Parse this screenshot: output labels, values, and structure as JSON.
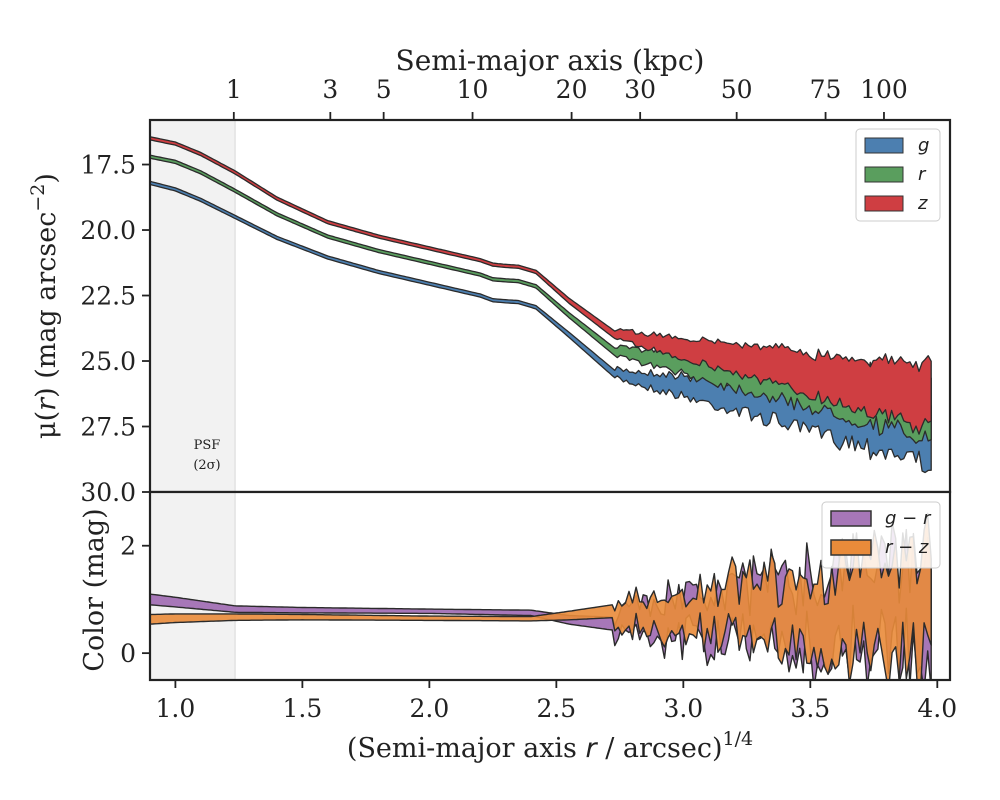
{
  "chart_data": [
    {
      "type": "area",
      "panel": "surface-brightness",
      "xlabel": "(Semi-major axis r / arcsec)^1/4",
      "xlabel_main": "(Semi-major axis ",
      "xlabel_var": "r",
      "xlabel_unit": " / arcsec)",
      "xlabel_exp": "1/4",
      "ylabel": "μ(r) (mag arcsec−2)",
      "ylabel_main": "μ(",
      "ylabel_var": "r",
      "ylabel_unit": ") (mag arcsec",
      "ylabel_exp": "−2",
      "ylabel_close": ")",
      "top_xlabel": "Semi-major axis (kpc)",
      "top_ticks": [
        "1",
        "3",
        "5",
        "10",
        "20",
        "30",
        "50",
        "75",
        "100"
      ],
      "top_tick_values": [
        1,
        3,
        5,
        10,
        20,
        30,
        50,
        75,
        100
      ],
      "xlim": [
        0.9,
        4.05
      ],
      "ylim": [
        30.0,
        15.8
      ],
      "y_inverted": true,
      "yticks": [
        "17.5",
        "20.0",
        "22.5",
        "25.0",
        "27.5",
        "30.0"
      ],
      "ytick_values": [
        17.5,
        20.0,
        22.5,
        25.0,
        27.5,
        30.0
      ],
      "psf_region": {
        "x_min": 0.9,
        "x_max": 1.235,
        "label_line1": "PSF",
        "label_line2": "(2σ)"
      },
      "legend": {
        "placement": "top-right",
        "entries": [
          "g",
          "r",
          "z"
        ]
      },
      "x_knots": [
        0.9,
        1.0,
        1.1,
        1.235,
        1.4,
        1.6,
        1.8,
        2.0,
        2.2,
        2.25,
        2.3,
        2.35,
        2.42,
        2.55,
        2.73
      ],
      "series": [
        {
          "name": "g",
          "color": "#4c7fb0",
          "values": [
            18.2,
            18.45,
            18.85,
            19.5,
            20.3,
            21.05,
            21.6,
            22.05,
            22.5,
            22.68,
            22.72,
            22.75,
            22.95,
            24.0,
            25.5
          ],
          "noisy_level_end": 27.7,
          "noise_amp": 0.45
        },
        {
          "name": "r",
          "color": "#5a9e5e",
          "values": [
            17.2,
            17.4,
            17.8,
            18.5,
            19.4,
            20.25,
            20.8,
            21.25,
            21.7,
            21.88,
            21.92,
            21.95,
            22.15,
            23.25,
            24.65
          ],
          "noisy_level_end": 26.8,
          "noise_amp": 0.35
        },
        {
          "name": "z",
          "color": "#cf3e42",
          "values": [
            16.5,
            16.7,
            17.1,
            17.8,
            18.8,
            19.7,
            20.25,
            20.7,
            21.15,
            21.32,
            21.37,
            21.4,
            21.6,
            22.7,
            24.0
          ],
          "noisy_level_end": 26.4,
          "noise_amp": 0.3
        }
      ]
    },
    {
      "type": "area",
      "panel": "color",
      "ylabel": "Color (mag)",
      "xlim": [
        0.9,
        4.05
      ],
      "ylim": [
        -0.5,
        3.0
      ],
      "yticks": [
        "0",
        "2"
      ],
      "ytick_values": [
        0,
        2
      ],
      "xticks": [
        "1.0",
        "1.5",
        "2.0",
        "2.5",
        "3.0",
        "3.5",
        "4.0"
      ],
      "xtick_values": [
        1.0,
        1.5,
        2.0,
        2.5,
        3.0,
        3.5,
        4.0
      ],
      "legend": {
        "placement": "top-right",
        "entries": [
          "g − r",
          "r − z"
        ]
      },
      "series": [
        {
          "name": "g − r",
          "color": "#a777b8",
          "x": [
            0.9,
            1.0,
            1.235,
            1.5,
            2.0,
            2.4,
            2.55,
            2.72
          ],
          "center": [
            1.0,
            0.95,
            0.82,
            0.8,
            0.78,
            0.75,
            0.62,
            0.55
          ],
          "halfwidth": [
            0.1,
            0.09,
            0.06,
            0.05,
            0.04,
            0.05,
            0.08,
            0.12
          ],
          "noisy_center_end": 1.0,
          "noise_amp": 0.55
        },
        {
          "name": "r − z",
          "color": "#e98b3a",
          "x": [
            0.9,
            1.0,
            1.235,
            1.5,
            2.0,
            2.4,
            2.55,
            2.72
          ],
          "center": [
            0.63,
            0.65,
            0.67,
            0.67,
            0.65,
            0.64,
            0.7,
            0.78
          ],
          "halfwidth": [
            0.09,
            0.08,
            0.06,
            0.05,
            0.04,
            0.04,
            0.08,
            0.12
          ],
          "noisy_center_end": 0.8,
          "noise_amp": 0.45
        }
      ]
    }
  ]
}
